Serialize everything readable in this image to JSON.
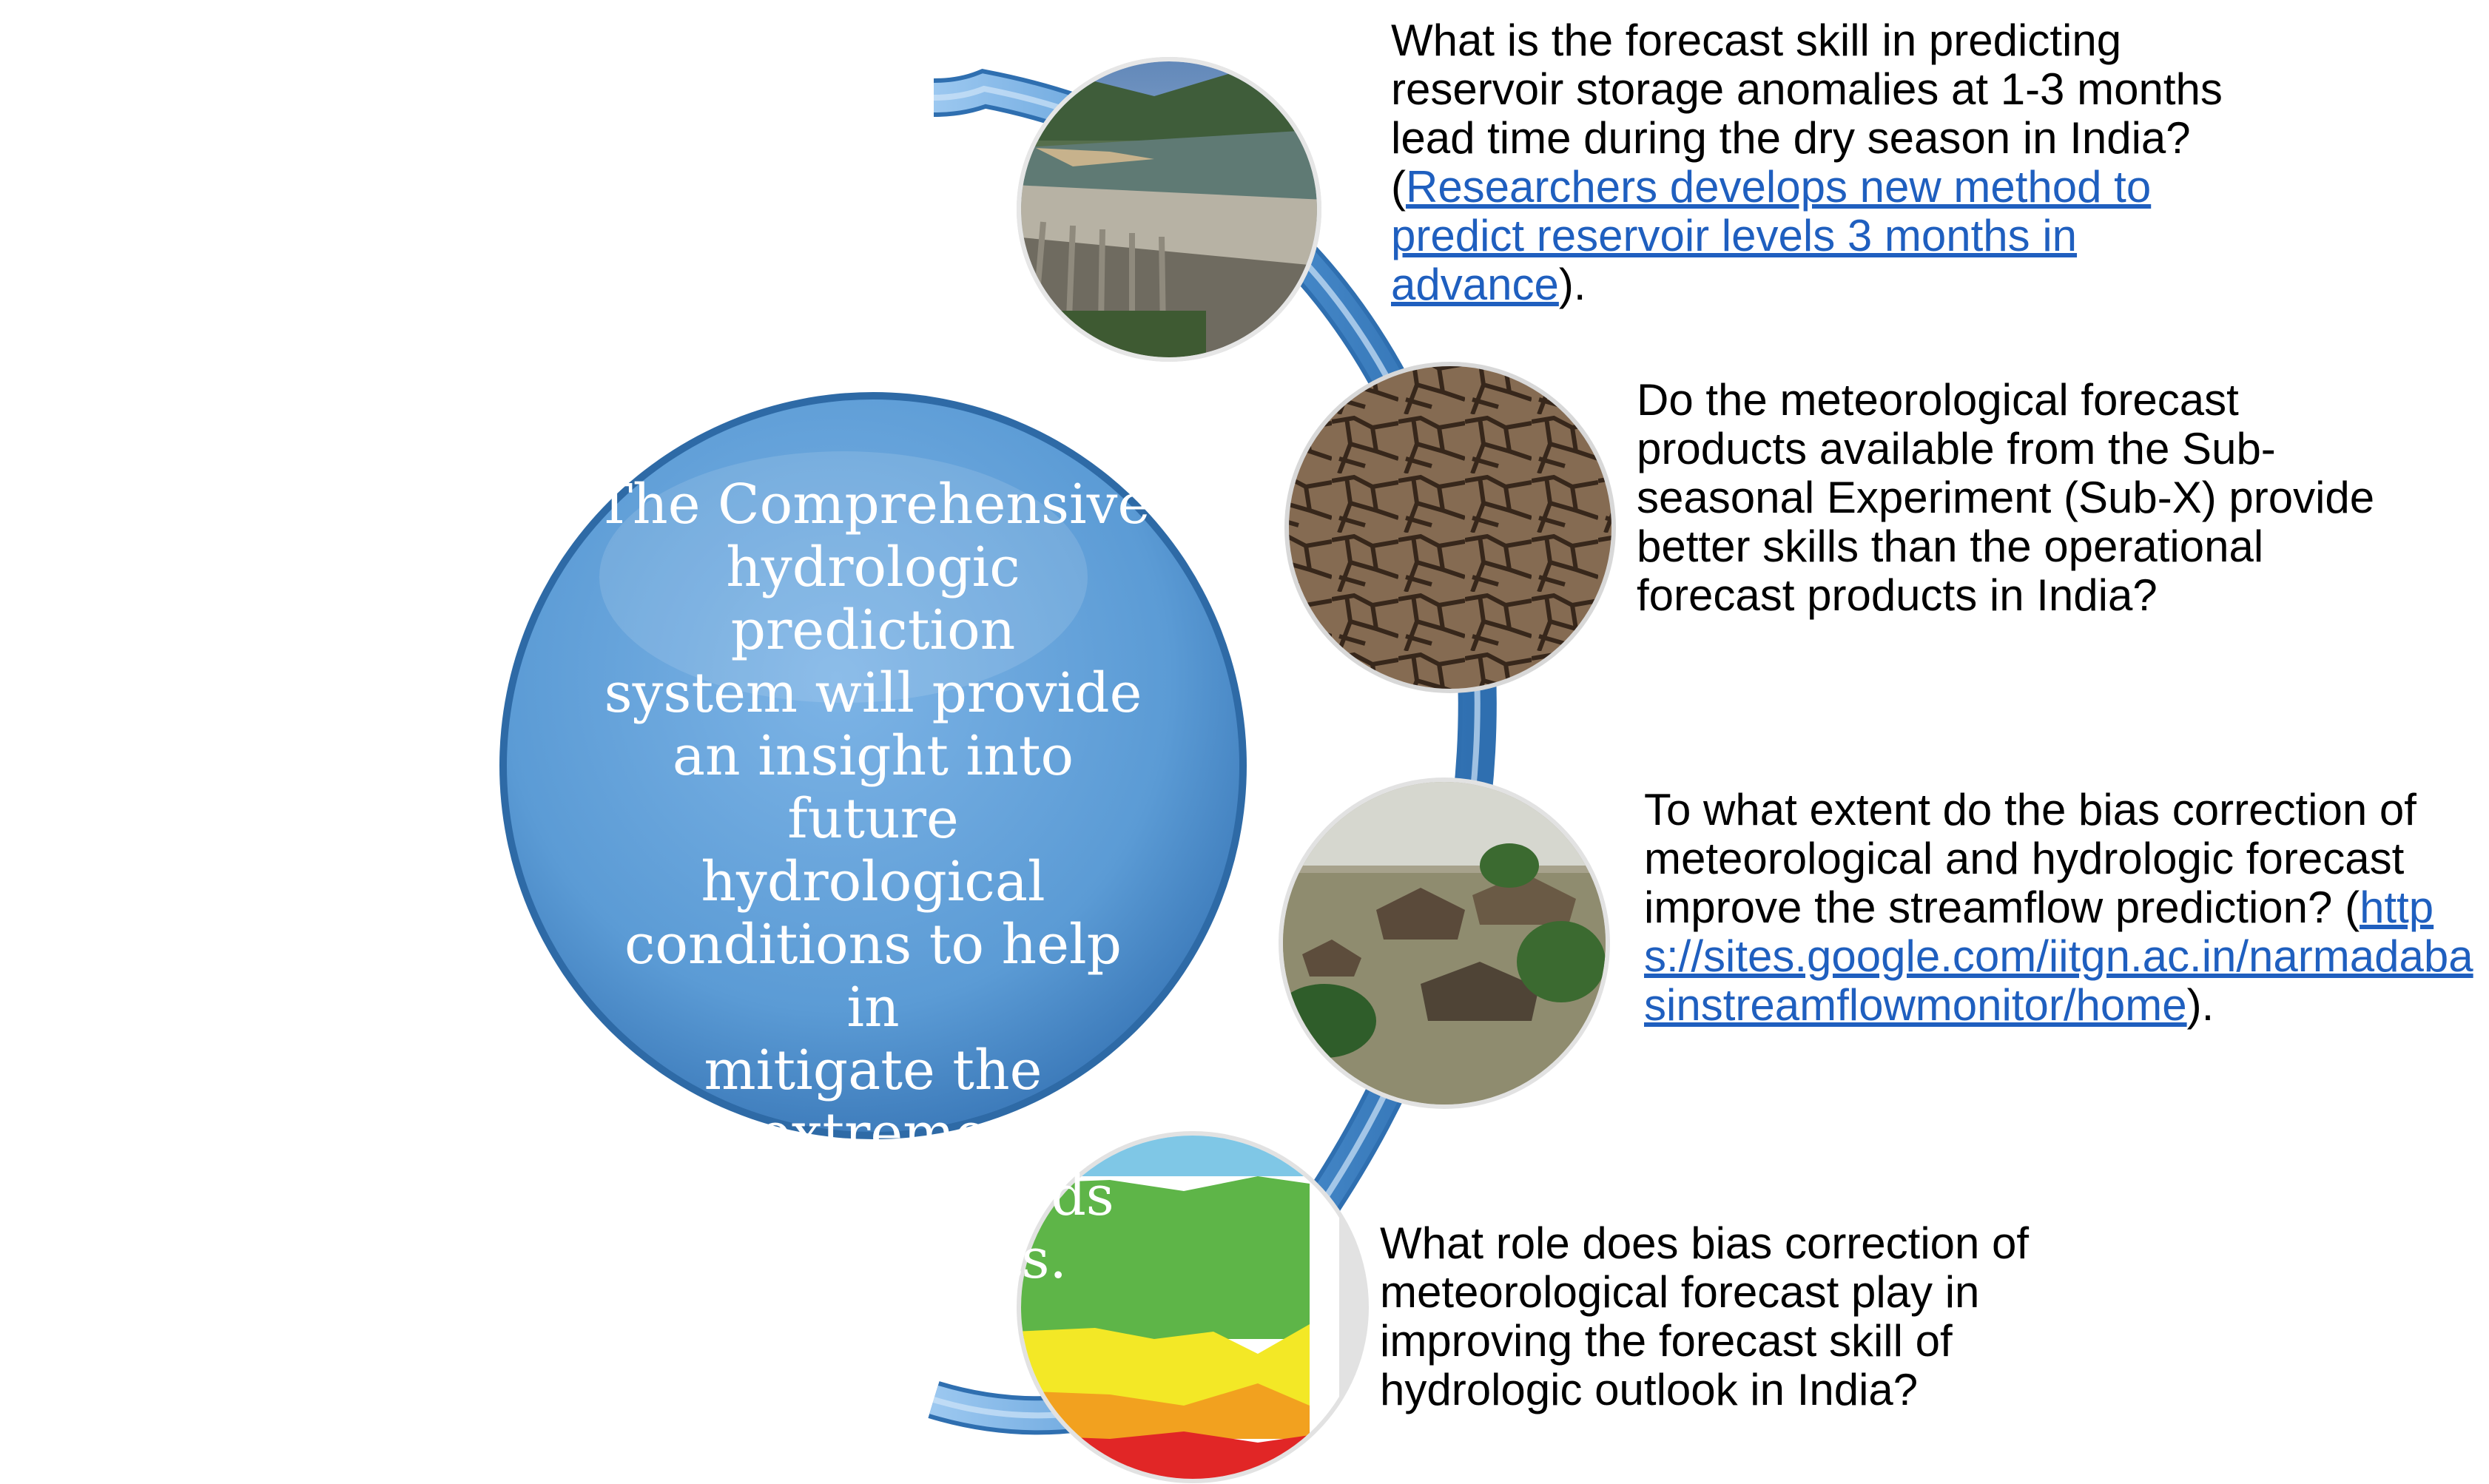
{
  "center": {
    "text_lines": [
      "The Comprehensive",
      "hydrologic prediction",
      "system will provide",
      "an insight into future",
      "hydrological",
      "conditions to help in",
      "mitigate the extreme",
      "events like floods",
      "and droughts."
    ]
  },
  "questions": [
    {
      "text_before": "What is the forecast skill in predicting reservoir storage anomalies at 1-3 months lead time during the dry season in India? (",
      "link": "Researchers develops new method to predict reservoir levels 3 months in advance",
      "text_after": ").",
      "image": "reservoir-dam-photo"
    },
    {
      "text": "Do the meteorological forecast products available from the Sub-seasonal Experiment (Sub-X) provide better skills than the operational forecast products in India?",
      "image": "cracked-dry-earth-photo"
    },
    {
      "text_before": "To what extent do the bias correction of meteorological and hydrologic forecast improve the streamflow prediction? (",
      "link": "https://sites.google.com/iitgn.ac.in/narmadabasinstreamflowmonitor/home",
      "text_after": ").",
      "image": "flooded-village-photo"
    },
    {
      "text": "What role does bias correction of meteorological forecast play in improving the forecast skill of hydrologic outlook in India?",
      "image": "forecast-skill-chart-photo"
    }
  ],
  "colors": {
    "main_circle": "#5b9bd5",
    "arc": "#4f93d3",
    "link": "#1f5fbf",
    "text": "#000000"
  }
}
